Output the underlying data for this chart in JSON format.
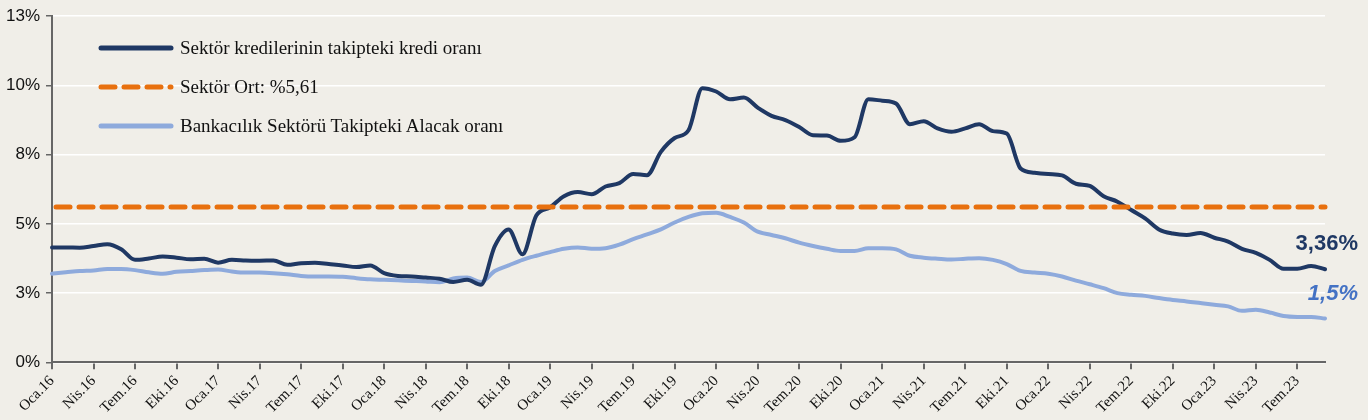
{
  "chart_data": {
    "type": "line",
    "categories": [
      "Oca.16",
      null,
      null,
      "Nis.16",
      null,
      null,
      "Tem.16",
      null,
      null,
      "Eki.16",
      null,
      null,
      "Oca.17",
      null,
      null,
      "Nis.17",
      null,
      null,
      "Tem.17",
      null,
      null,
      "Eki.17",
      null,
      null,
      "Oca.18",
      null,
      null,
      "Nis.18",
      null,
      null,
      "Tem.18",
      null,
      null,
      "Eki.18",
      null,
      null,
      "Oca.19",
      null,
      null,
      "Nis.19",
      null,
      null,
      "Tem.19",
      null,
      null,
      "Eki.19",
      null,
      null,
      "Oca.20",
      null,
      null,
      "Nis.20",
      null,
      null,
      "Tem.20",
      null,
      null,
      "Eki.20",
      null,
      null,
      "Oca.21",
      null,
      null,
      "Nis.21",
      null,
      null,
      "Tem.21",
      null,
      null,
      "Eki.21",
      null,
      null,
      "Oca.22",
      null,
      null,
      "Nis.22",
      null,
      null,
      "Tem.22",
      null,
      null,
      "Eki.22",
      null,
      null,
      "Oca.23",
      null,
      null,
      "Nis.23",
      null,
      null,
      "Tem.23",
      null,
      null
    ],
    "series": [
      {
        "name": "Sektör kredilerinin takipteki kredi oranı",
        "color": "#1f3864",
        "values": [
          4.15,
          4.15,
          4.14,
          4.2,
          4.26,
          4.08,
          3.7,
          3.75,
          3.82,
          3.78,
          3.72,
          3.74,
          3.6,
          3.7,
          3.68,
          3.67,
          3.68,
          3.52,
          3.58,
          3.6,
          3.55,
          3.5,
          3.44,
          3.5,
          3.22,
          3.12,
          3.1,
          3.06,
          3.02,
          2.9,
          2.98,
          2.8,
          4.2,
          4.8,
          3.9,
          5.3,
          5.6,
          6.0,
          6.15,
          6.07,
          6.35,
          6.47,
          6.8,
          6.76,
          7.6,
          8.1,
          8.38,
          9.9,
          9.78,
          9.5,
          9.56,
          9.2,
          8.9,
          8.75,
          8.5,
          8.2,
          8.19,
          8.0,
          8.13,
          9.5,
          9.45,
          9.35,
          8.6,
          8.71,
          8.45,
          8.33,
          8.45,
          8.6,
          8.35,
          8.26,
          7.0,
          6.85,
          6.8,
          6.75,
          6.45,
          6.37,
          6.0,
          5.8,
          5.5,
          5.2,
          4.8,
          4.65,
          4.6,
          4.67,
          4.5,
          4.36,
          4.1,
          3.95,
          3.7,
          3.38,
          3.38,
          3.48,
          3.36
        ]
      },
      {
        "name": "Bankacılık Sektörü Takipteki Alacak oranı",
        "color": "#8eaadc",
        "values": [
          3.2,
          3.25,
          3.3,
          3.32,
          3.37,
          3.37,
          3.33,
          3.25,
          3.2,
          3.27,
          3.3,
          3.33,
          3.35,
          3.28,
          3.24,
          3.24,
          3.22,
          3.18,
          3.12,
          3.1,
          3.1,
          3.09,
          3.04,
          3.0,
          2.98,
          2.96,
          2.94,
          2.92,
          2.89,
          3.03,
          3.06,
          2.9,
          3.3,
          3.5,
          3.7,
          3.85,
          3.98,
          4.1,
          4.15,
          4.1,
          4.12,
          4.25,
          4.45,
          4.62,
          4.8,
          5.05,
          5.25,
          5.38,
          5.4,
          5.25,
          5.05,
          4.72,
          4.6,
          4.48,
          4.32,
          4.2,
          4.1,
          4.02,
          4.02,
          4.12,
          4.12,
          4.08,
          3.85,
          3.78,
          3.74,
          3.71,
          3.74,
          3.76,
          3.7,
          3.55,
          3.3,
          3.24,
          3.2,
          3.1,
          2.95,
          2.82,
          2.68,
          2.5,
          2.44,
          2.4,
          2.32,
          2.25,
          2.2,
          2.14,
          2.08,
          2.02,
          1.86,
          1.9,
          1.8,
          1.67,
          1.64,
          1.64,
          1.58
        ]
      }
    ],
    "ref_lines": [
      {
        "axis": "y",
        "value": 5.61,
        "label": "Sektör Ort: %5,61",
        "color": "#e8700e",
        "line_style": "dashed"
      }
    ],
    "ylim": [
      0,
      12.5
    ],
    "yticks": [
      {
        "value": 0,
        "label": "0%"
      },
      {
        "value": 2.5,
        "label": "3%"
      },
      {
        "value": 5,
        "label": "5%"
      },
      {
        "value": 7.5,
        "label": "8%"
      },
      {
        "value": 10,
        "label": "10%"
      },
      {
        "value": 12.5,
        "label": "13%"
      }
    ],
    "annotations": [
      "3,36%",
      "1,5%"
    ],
    "grid": "y",
    "legend": "top left",
    "marker": "none",
    "line_style": "solid"
  }
}
